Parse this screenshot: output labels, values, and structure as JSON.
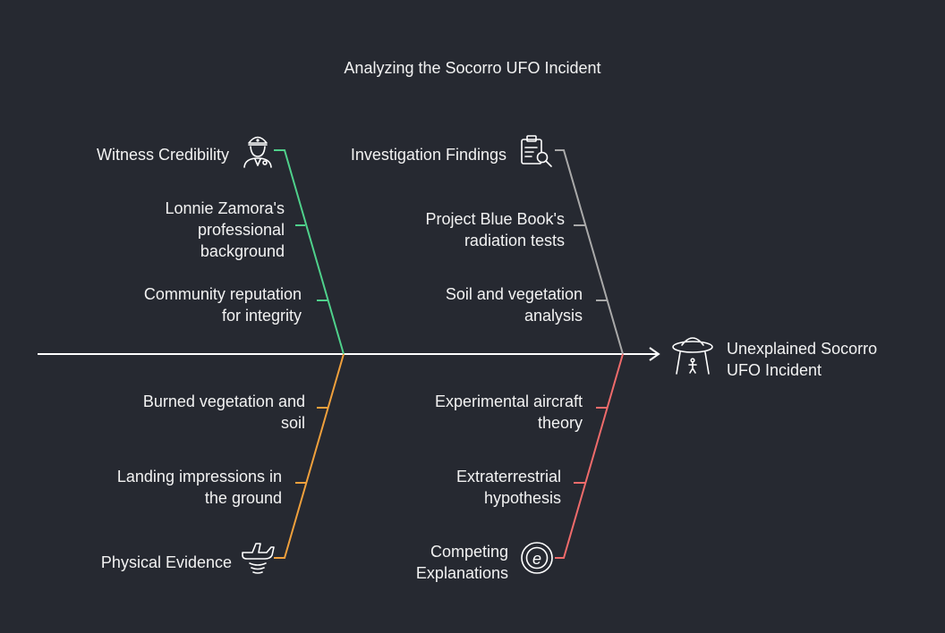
{
  "title": "Analyzing the Socorro UFO Incident",
  "colors": {
    "background": "#262931",
    "spine": "#ffffff",
    "witness": "#4fd18b",
    "investigation": "#a9a9a9",
    "physical": "#f0a03c",
    "explanations": "#ef6b6b"
  },
  "effect": {
    "lines": [
      "Unexplained Socorro",
      "UFO Incident"
    ],
    "icon": "ufo-icon"
  },
  "categories": {
    "witness": {
      "label": "Witness Credibility",
      "icon": "police-officer-icon",
      "causes": [
        {
          "lines": [
            "Lonnie Zamora's",
            "professional",
            "background"
          ]
        },
        {
          "lines": [
            "Community reputation",
            "for integrity"
          ]
        }
      ]
    },
    "investigation": {
      "label": "Investigation Findings",
      "icon": "clipboard-search-icon",
      "causes": [
        {
          "lines": [
            "Project Blue Book's",
            "radiation tests"
          ]
        },
        {
          "lines": [
            "Soil and vegetation",
            "analysis"
          ]
        }
      ]
    },
    "physical": {
      "label": "Physical Evidence",
      "icon": "aircraft-landing-icon",
      "causes": [
        {
          "lines": [
            "Burned vegetation and",
            "soil"
          ]
        },
        {
          "lines": [
            "Landing impressions in",
            "the ground"
          ]
        }
      ]
    },
    "explanations": {
      "lines": [
        "Competing",
        "Explanations"
      ],
      "icon": "explanation-e-icon",
      "causes": [
        {
          "lines": [
            "Experimental aircraft",
            "theory"
          ]
        },
        {
          "lines": [
            "Extraterrestrial",
            "hypothesis"
          ]
        }
      ]
    }
  }
}
